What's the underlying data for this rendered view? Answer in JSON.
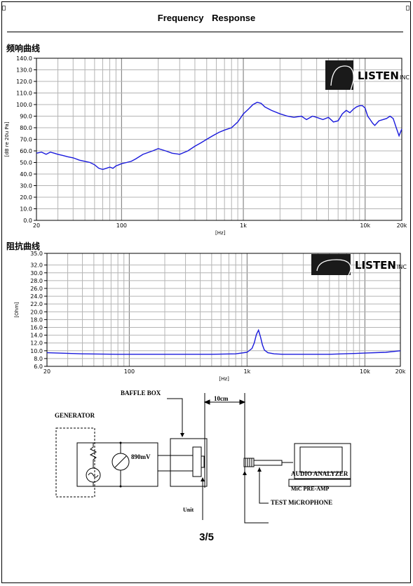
{
  "document": {
    "title": "Frequency    Response",
    "page_number": "3/5"
  },
  "logo_text": "LISTEN",
  "logo_suffix": "INC",
  "chart_data": [
    {
      "type": "line",
      "title": "频响曲线",
      "ylabel": "[dB re 20u Pa]",
      "xlabel": "[Hz]",
      "x_scale": "log",
      "xlim": [
        20,
        20000
      ],
      "ylim": [
        0,
        140
      ],
      "y_ticks": [
        "0.0",
        "10.0",
        "20.0",
        "30.0",
        "40.0",
        "50.0",
        "60.0",
        "70.0",
        "80.0",
        "90.0",
        "100.0",
        "110.0",
        "120.0",
        "130.0",
        "140.0"
      ],
      "x_ticks": [
        "20",
        "100",
        "1k",
        "10k",
        "20k"
      ],
      "grid": true,
      "series": [
        {
          "color": "#1a1adc",
          "x": [
            20,
            22,
            24,
            26,
            28,
            30,
            33,
            36,
            40,
            45,
            50,
            55,
            60,
            65,
            70,
            75,
            80,
            85,
            90,
            95,
            100,
            110,
            120,
            130,
            150,
            180,
            200,
            230,
            260,
            300,
            350,
            400,
            450,
            500,
            560,
            630,
            700,
            800,
            900,
            1000,
            1100,
            1200,
            1300,
            1400,
            1500,
            1700,
            2000,
            2300,
            2600,
            3000,
            3300,
            3700,
            4000,
            4500,
            5000,
            5500,
            6000,
            6500,
            7000,
            7500,
            8000,
            8500,
            9000,
            9500,
            10000,
            10500,
            11000,
            11500,
            12000,
            13000,
            14000,
            15000,
            16000,
            17000,
            18000,
            19000,
            20000
          ],
          "y": [
            58,
            59,
            57,
            59,
            58,
            57,
            56,
            55,
            54,
            52,
            51,
            50,
            48,
            45,
            44,
            45,
            46,
            45,
            47,
            48,
            49,
            50,
            51,
            53,
            57,
            60,
            62,
            60,
            58,
            57,
            60,
            64,
            67,
            70,
            73,
            76,
            78,
            80,
            85,
            92,
            96,
            100,
            102,
            101,
            98,
            95,
            92,
            90,
            89,
            90,
            87,
            90,
            89,
            87,
            89,
            85,
            86,
            92,
            95,
            93,
            96,
            98,
            99,
            99,
            97,
            90,
            87,
            84,
            82,
            86,
            87,
            88,
            90,
            88,
            80,
            73,
            79
          ]
        }
      ]
    },
    {
      "type": "line",
      "title": "阻抗曲线",
      "ylabel": "[Ohm]",
      "xlabel": "[Hz]",
      "x_scale": "log",
      "xlim": [
        20,
        20000
      ],
      "ylim": [
        6,
        35
      ],
      "y_ticks": [
        "6.0",
        "8.0",
        "10.0",
        "12.0",
        "14.0",
        "16.0",
        "18.0",
        "20.0",
        "22.0",
        "24.0",
        "26.0",
        "28.0",
        "30.0",
        "32.0",
        "35.0"
      ],
      "x_ticks": [
        "20",
        "100",
        "1k",
        "10k",
        "20k"
      ],
      "grid": true,
      "series": [
        {
          "color": "#1a1adc",
          "x": [
            20,
            40,
            80,
            150,
            300,
            500,
            800,
            1000,
            1100,
            1150,
            1200,
            1250,
            1300,
            1350,
            1400,
            1500,
            1700,
            2000,
            3000,
            5000,
            8000,
            10000,
            15000,
            20000
          ],
          "y": [
            9.5,
            9.2,
            9.1,
            9.1,
            9.1,
            9.1,
            9.2,
            9.6,
            10.6,
            12.0,
            14.2,
            15.3,
            13.5,
            11.5,
            10.2,
            9.5,
            9.2,
            9.1,
            9.1,
            9.1,
            9.3,
            9.4,
            9.6,
            10.0
          ]
        }
      ]
    }
  ],
  "diagram": {
    "baffle_box": "BAFFLE BOX",
    "generator": "GENERATOR",
    "distance": "10cm",
    "voltage": "890mV",
    "audio_analyzer": "AUDIO ANALYZER",
    "mic_preamp": "MiC PRE-AMP",
    "test_microphone": "TEST MiCROPHONE",
    "unit": "Unit"
  }
}
